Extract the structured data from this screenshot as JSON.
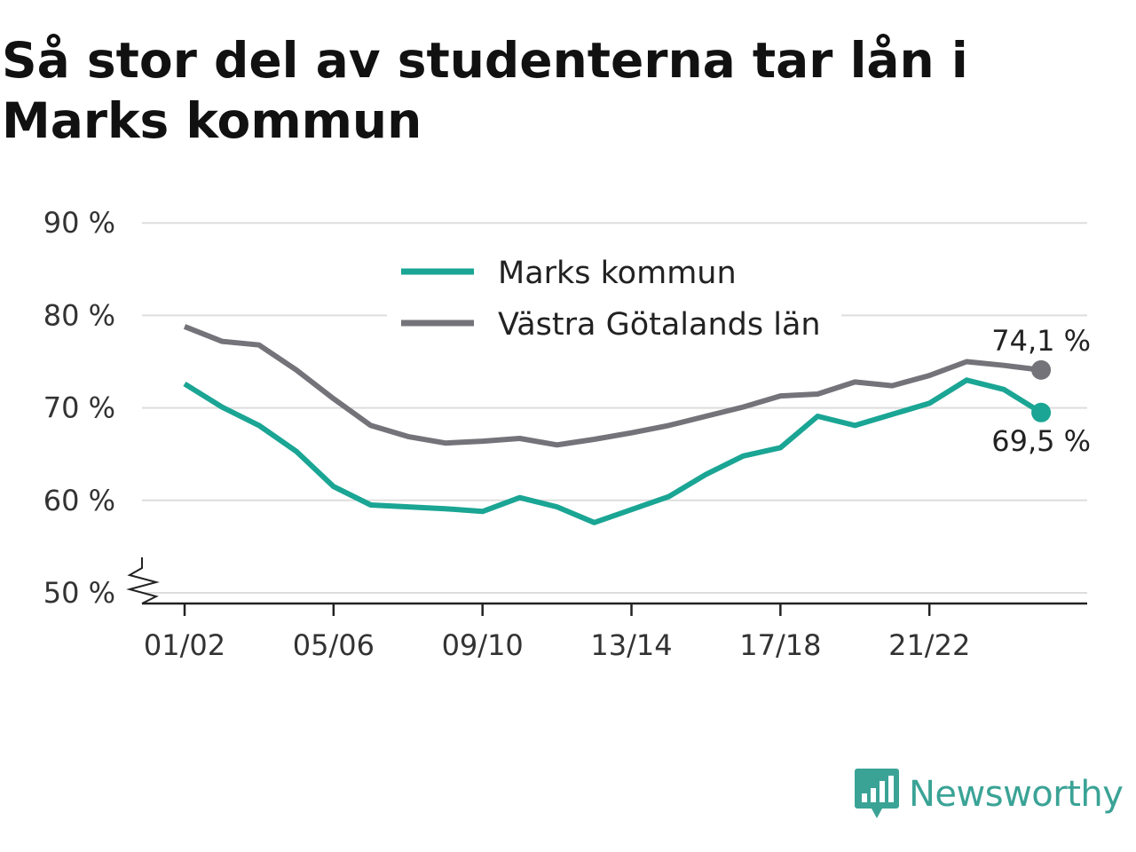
{
  "title": "Så stor del av studenterna tar lån i Marks kommun",
  "brand": {
    "name": "Newsworthy",
    "color": "#3aa396",
    "icon": "newsworthy-logo-icon"
  },
  "colors": {
    "marks": "#1aa594",
    "vgl": "#747379",
    "grid": "#dddddd",
    "axis": "#222222"
  },
  "chart_data": {
    "type": "line",
    "title": "Så stor del av studenterna tar lån i Marks kommun",
    "xlabel": "",
    "ylabel": "",
    "x": [
      "01/02",
      "02/03",
      "03/04",
      "04/05",
      "05/06",
      "06/07",
      "07/08",
      "08/09",
      "09/10",
      "10/11",
      "11/12",
      "12/13",
      "13/14",
      "14/15",
      "15/16",
      "16/17",
      "17/18",
      "18/19",
      "19/20",
      "20/21",
      "21/22",
      "22/23",
      "23/24",
      "24/25"
    ],
    "xticks": [
      "01/02",
      "05/06",
      "09/10",
      "13/14",
      "17/18",
      "21/22"
    ],
    "yticks": [
      50,
      60,
      70,
      80,
      90
    ],
    "ytick_labels": [
      "50 %",
      "60 %",
      "70 %",
      "80 %",
      "90 %"
    ],
    "ylim": [
      50,
      90
    ],
    "y_axis_break": true,
    "grid": "horizontal",
    "legend_position": "top-center",
    "series": [
      {
        "name": "Marks kommun",
        "color": "#1aa594",
        "values": [
          72.6,
          70.1,
          68.1,
          65.3,
          61.5,
          59.5,
          59.3,
          59.1,
          58.8,
          60.3,
          59.3,
          57.6,
          59.0,
          60.4,
          62.8,
          64.8,
          65.7,
          69.1,
          68.1,
          69.3,
          70.5,
          73.0,
          72.0,
          69.5
        ],
        "end_label": "69,5 %"
      },
      {
        "name": "Västra Götalands län",
        "color": "#747379",
        "values": [
          78.8,
          77.2,
          76.8,
          74.1,
          71.0,
          68.1,
          66.9,
          66.2,
          66.4,
          66.7,
          66.0,
          66.6,
          67.3,
          68.1,
          69.1,
          70.1,
          71.3,
          71.5,
          72.8,
          72.4,
          73.5,
          75.0,
          74.6,
          74.1
        ],
        "end_label": "74,1 %"
      }
    ]
  }
}
